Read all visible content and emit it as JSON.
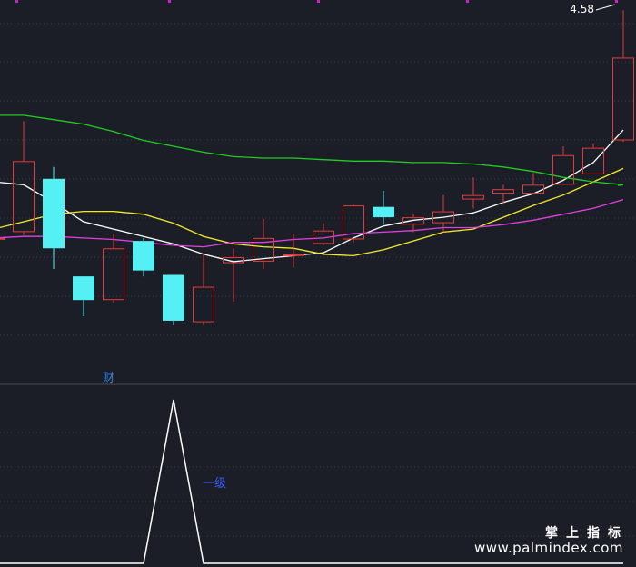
{
  "chart_data": {
    "type": "candlestick",
    "price_label": "4.58",
    "panel_marker_text": "财",
    "indicator_label": "一级",
    "y_range": [
      2.08,
      4.65
    ],
    "candles": [
      {
        "open": 3.04,
        "close": 3.04,
        "high": 3.04,
        "low": 3.04
      },
      {
        "open": 3.08,
        "close": 3.56,
        "high": 3.83,
        "low": 3.06
      },
      {
        "open": 3.44,
        "close": 2.97,
        "high": 3.52,
        "low": 2.83
      },
      {
        "open": 2.78,
        "close": 2.62,
        "high": 2.78,
        "low": 2.51
      },
      {
        "open": 2.62,
        "close": 2.97,
        "high": 3.07,
        "low": 2.6
      },
      {
        "open": 3.02,
        "close": 2.82,
        "high": 3.04,
        "low": 2.78
      },
      {
        "open": 2.79,
        "close": 2.48,
        "high": 2.79,
        "low": 2.45
      },
      {
        "open": 2.47,
        "close": 2.71,
        "high": 2.93,
        "low": 2.45
      },
      {
        "open": 2.87,
        "close": 2.91,
        "high": 2.97,
        "low": 2.61
      },
      {
        "open": 2.88,
        "close": 3.04,
        "high": 3.17,
        "low": 2.83
      },
      {
        "open": 2.93,
        "close": 2.93,
        "high": 3.07,
        "low": 2.84
      },
      {
        "open": 3.0,
        "close": 3.09,
        "high": 3.14,
        "low": 2.99
      },
      {
        "open": 3.03,
        "close": 3.26,
        "high": 3.27,
        "low": 3.01
      },
      {
        "open": 3.25,
        "close": 3.18,
        "high": 3.36,
        "low": 3.13
      },
      {
        "open": 3.13,
        "close": 3.18,
        "high": 3.2,
        "low": 3.08
      },
      {
        "open": 3.14,
        "close": 3.22,
        "high": 3.33,
        "low": 3.08
      },
      {
        "open": 3.3,
        "close": 3.33,
        "high": 3.45,
        "low": 3.24
      },
      {
        "open": 3.34,
        "close": 3.37,
        "high": 3.4,
        "low": 3.27
      },
      {
        "open": 3.34,
        "close": 3.4,
        "high": 3.48,
        "low": 3.34
      },
      {
        "open": 3.4,
        "close": 3.6,
        "high": 3.66,
        "low": 3.4
      },
      {
        "open": 3.47,
        "close": 3.65,
        "high": 3.68,
        "low": 3.47
      },
      {
        "open": 3.7,
        "close": 4.26,
        "high": 4.58,
        "low": 3.69
      }
    ],
    "ma_series": [
      {
        "color": "#ffffff",
        "values": [
          3.42,
          3.4,
          3.28,
          3.15,
          3.1,
          3.05,
          3.0,
          2.93,
          2.88,
          2.9,
          2.92,
          2.94,
          3.04,
          3.12,
          3.16,
          3.18,
          3.21,
          3.28,
          3.34,
          3.43,
          3.55,
          3.77
        ]
      },
      {
        "color": "#f2ea2e",
        "values": [
          3.1,
          3.15,
          3.2,
          3.22,
          3.22,
          3.2,
          3.14,
          3.05,
          3.0,
          2.98,
          2.97,
          2.93,
          2.92,
          2.96,
          3.02,
          3.08,
          3.1,
          3.18,
          3.26,
          3.33,
          3.42,
          3.51
        ]
      },
      {
        "color": "#e040e0",
        "values": [
          3.04,
          3.05,
          3.05,
          3.04,
          3.03,
          3.01,
          2.99,
          2.98,
          3.01,
          3.01,
          3.03,
          3.04,
          3.07,
          3.08,
          3.09,
          3.11,
          3.11,
          3.13,
          3.16,
          3.2,
          3.24,
          3.3
        ]
      },
      {
        "color": "#22cc22",
        "values": [
          3.87,
          3.87,
          3.84,
          3.81,
          3.76,
          3.7,
          3.66,
          3.62,
          3.59,
          3.58,
          3.58,
          3.57,
          3.56,
          3.56,
          3.55,
          3.55,
          3.54,
          3.52,
          3.49,
          3.45,
          3.42,
          3.4
        ]
      }
    ],
    "indicator": {
      "values": [
        0,
        0,
        0,
        0,
        0,
        0,
        1,
        0,
        0,
        0,
        0,
        0,
        0,
        0,
        0,
        0,
        0,
        0,
        0,
        0,
        0,
        0
      ],
      "range": [
        0,
        1
      ]
    }
  },
  "watermark": {
    "name": "掌上指标",
    "url": "www.palmindex.com"
  },
  "colors": {
    "background": "#1b1e26",
    "grid": "#3a3f4b",
    "up": "#e23b3b",
    "down": "#54f0f4",
    "indicator_line": "#ffffff",
    "indicator_label": "#3d5cff",
    "panel_marker": "#3a7fd6",
    "top_marks": "#d020d0"
  }
}
